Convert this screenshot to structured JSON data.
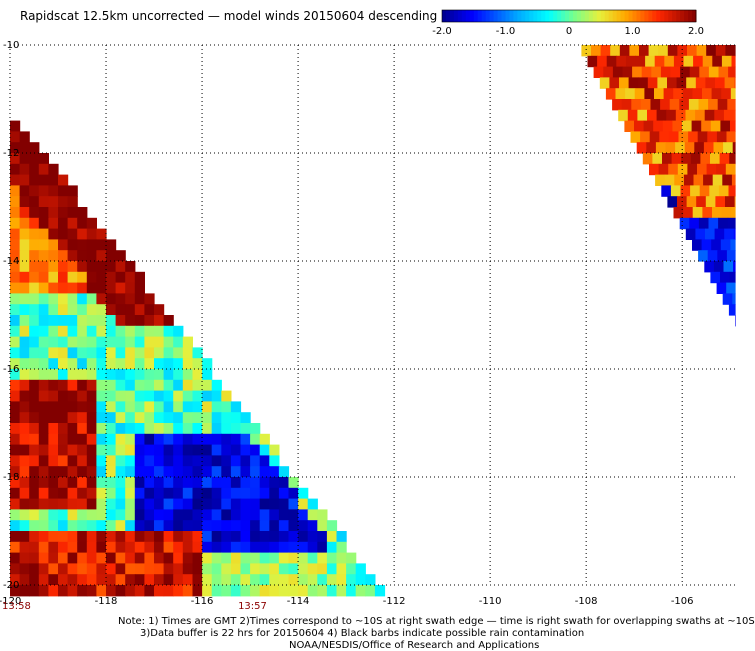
{
  "title": "Rapidscat 12.5km uncorrected — model winds 20150604 descending",
  "colorbar": {
    "ticks": [
      "-2.0",
      "-1.0",
      "0",
      "1.0",
      "2.0"
    ],
    "range": [
      -2.0,
      2.0
    ]
  },
  "footer": {
    "note_line1": "Note: 1) Times are GMT 2)Times correspond to ~10S at right swath edge — time is right swath for overlapping swaths at ~10S",
    "note_line2": "3)Data buffer is 22 hrs for 20150604 4) Black barbs indicate possible rain contamination",
    "note_line3": "NOAA/NESDIS/Office of Research and Applications"
  },
  "chart_data": {
    "type": "heatmap",
    "title": "Rapidscat 12.5km uncorrected — model winds 20150604 descending",
    "x_ticks": [
      "-120",
      "-118",
      "-116",
      "-114",
      "-112",
      "-110",
      "-108",
      "-106"
    ],
    "y_ticks": [
      "-10",
      "-12",
      "-14",
      "-16",
      "-18",
      "-20"
    ],
    "xlim": [
      -120,
      -104.9
    ],
    "ylim": [
      -20,
      -10
    ],
    "grid": true,
    "grid_style": "dotted",
    "time_labels": [
      {
        "text": "13:58",
        "lon": -120
      },
      {
        "text": "13:57",
        "lon": -115
      }
    ],
    "colormap": "blue-cyan-green-yellow-red-darkred",
    "value_range": [
      -2.0,
      2.0
    ],
    "swaths": [
      {
        "name": "left_swath",
        "description": "triangle from (-120,-11.2) to (-120,-20) to (-112.3,-20)"
      },
      {
        "name": "right_swath",
        "description": "triangle from (-108.1,-10) to (-104.9,-10) to (-104.9,-15)"
      }
    ]
  }
}
